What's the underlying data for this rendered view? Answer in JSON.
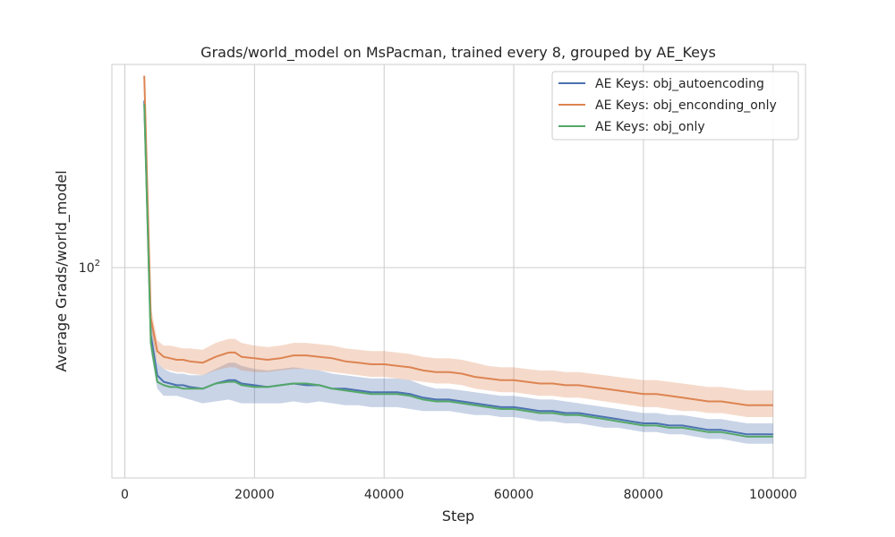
{
  "chart_data": {
    "type": "line",
    "title": "Grads/world_model on MsPacman, trained every 8, grouped by AE_Keys",
    "xlabel": "Step",
    "ylabel": "Average Grads/world_model",
    "xlim": [
      -2000,
      105000
    ],
    "ylim": [
      30,
      320
    ],
    "y_scale": "log",
    "x_ticks": [
      0,
      20000,
      40000,
      60000,
      80000,
      100000
    ],
    "x_tick_labels": [
      "0",
      "20000",
      "40000",
      "60000",
      "80000",
      "100000"
    ],
    "y_ticks": [
      100
    ],
    "y_tick_labels": [
      "10",
      "2"
    ],
    "grid": true,
    "legend_position": "top-right",
    "x": [
      3000,
      4000,
      5000,
      6000,
      7000,
      8000,
      9000,
      10000,
      12000,
      14000,
      16000,
      17000,
      18000,
      20000,
      22000,
      24000,
      26000,
      28000,
      30000,
      32000,
      34000,
      36000,
      38000,
      40000,
      42000,
      44000,
      46000,
      48000,
      50000,
      52000,
      54000,
      56000,
      58000,
      60000,
      62000,
      64000,
      66000,
      68000,
      70000,
      72000,
      74000,
      76000,
      78000,
      80000,
      82000,
      84000,
      86000,
      88000,
      90000,
      92000,
      94000,
      96000,
      98000,
      100000
    ],
    "series": [
      {
        "name": "AE Keys: obj_autoencoding",
        "color": "#4c72b0",
        "values": [
          260,
          68,
          54,
          52,
          51.5,
          51,
          51,
          50.5,
          50,
          51.5,
          52.5,
          52.5,
          51.5,
          51,
          50.5,
          51,
          51.5,
          51,
          51,
          50,
          50,
          49.5,
          49,
          49,
          49,
          48.5,
          47.5,
          47,
          47,
          46.5,
          46,
          45.5,
          45,
          45,
          44.5,
          44,
          44,
          43.5,
          43.5,
          43,
          42.5,
          42,
          41.5,
          41,
          41,
          40.5,
          40.5,
          40,
          39.5,
          39.5,
          39,
          38.5,
          38.5,
          38.5
        ],
        "band_lower": [
          260,
          62,
          50,
          48,
          48,
          48,
          47.5,
          47,
          46,
          46.5,
          47,
          46.5,
          46,
          46,
          46,
          46,
          46.5,
          46,
          46.5,
          46,
          45.5,
          45.5,
          45,
          45,
          45,
          44.5,
          44,
          44,
          44,
          43.5,
          43,
          43,
          42.5,
          42.5,
          42,
          41.5,
          41.5,
          41,
          41,
          40.5,
          40,
          40,
          39.5,
          39,
          39,
          38.5,
          38.5,
          38,
          37.5,
          37.5,
          37,
          36.5,
          36.5,
          36.5
        ],
        "band_upper": [
          260,
          75,
          58,
          56,
          55,
          54.5,
          54.5,
          54,
          54,
          56,
          58,
          58,
          57,
          56,
          55.5,
          56,
          56.5,
          56,
          55.5,
          54.5,
          54,
          53.5,
          53,
          53,
          53,
          52.5,
          51,
          50,
          50,
          49.5,
          49,
          48.5,
          48,
          48,
          47.5,
          47,
          47,
          46.5,
          46,
          45.5,
          45,
          44.5,
          44,
          43.5,
          43.5,
          43,
          43,
          42.5,
          42,
          42,
          41.5,
          41,
          41,
          41
        ]
      },
      {
        "name": "AE Keys: obj_enconding_only",
        "color": "#dd8452",
        "values": [
          300,
          75,
          62,
          60,
          59.5,
          59,
          59,
          58.5,
          58,
          60,
          61.5,
          61.5,
          60,
          59.5,
          59,
          59.5,
          60.5,
          60.5,
          60,
          59.5,
          58.5,
          58,
          57.5,
          57.5,
          57,
          56.5,
          55.5,
          55,
          55,
          54.5,
          53.5,
          53,
          52.5,
          52.5,
          52,
          51.5,
          51.5,
          51,
          51,
          50.5,
          50,
          49.5,
          49,
          48.5,
          48.5,
          48,
          47.5,
          47,
          46.5,
          46.5,
          46,
          45.5,
          45.5,
          45.5
        ],
        "band_lower": [
          300,
          70,
          58,
          56,
          55.5,
          55,
          55,
          54.5,
          54,
          55.5,
          56.5,
          56.5,
          55.5,
          55,
          55,
          55.5,
          56,
          56,
          55.5,
          55,
          54.5,
          54,
          53.5,
          53.5,
          53,
          52.5,
          52,
          51.5,
          51.5,
          51,
          50,
          49.5,
          49,
          49,
          48.5,
          48,
          48,
          47.5,
          47.5,
          47,
          46.5,
          46,
          45.5,
          45,
          45,
          44.5,
          44,
          44,
          43.5,
          43.5,
          43,
          42.5,
          42.5,
          42.5
        ],
        "band_upper": [
          300,
          80,
          66,
          64,
          64,
          63.5,
          63,
          63,
          62.5,
          65,
          66.5,
          66.5,
          65,
          64,
          63.5,
          64,
          65,
          65,
          64.5,
          64,
          63,
          62.5,
          62,
          62,
          61.5,
          61,
          60,
          59.5,
          59.5,
          59,
          58,
          57,
          56.5,
          56.5,
          56,
          55.5,
          55.5,
          55,
          55,
          54.5,
          54,
          53.5,
          53,
          52.5,
          52.5,
          52,
          51.5,
          51,
          50.5,
          50.5,
          50,
          49.5,
          49.5,
          49.5
        ]
      },
      {
        "name": "AE Keys: obj_only",
        "color": "#55a868",
        "values": [
          255,
          65,
          52,
          51,
          50.5,
          50.5,
          50,
          50,
          50,
          51.5,
          52,
          52,
          51,
          50.5,
          50.5,
          51,
          51.5,
          51.5,
          51,
          50,
          49.5,
          49,
          48.5,
          48.5,
          48.5,
          48,
          47,
          46.5,
          46.5,
          46,
          45.5,
          45,
          44.5,
          44.5,
          44,
          43.5,
          43.5,
          43,
          43,
          42.5,
          42,
          41.5,
          41,
          40.5,
          40.5,
          40,
          40,
          39.5,
          39,
          39,
          38.5,
          38,
          38,
          38
        ]
      }
    ]
  }
}
